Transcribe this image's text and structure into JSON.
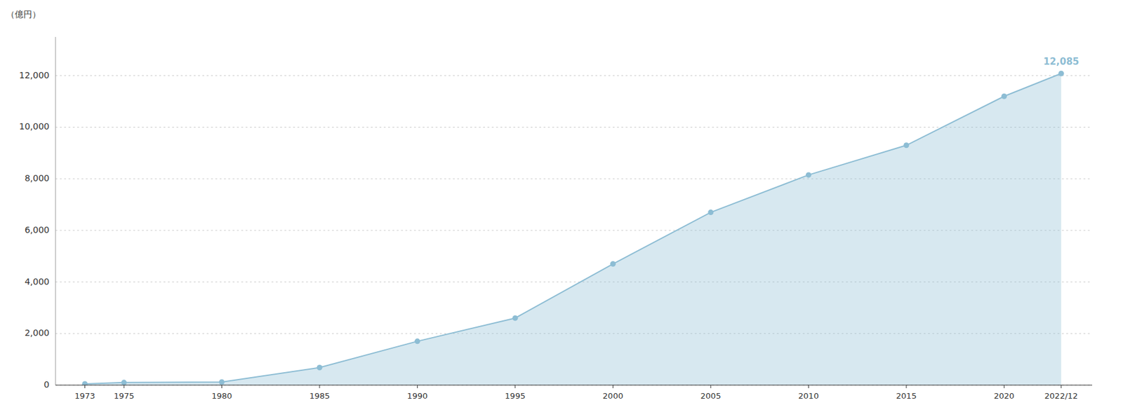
{
  "chart_data": {
    "type": "area",
    "x": [
      1973,
      1975,
      1980,
      1985,
      1990,
      1995,
      2000,
      2005,
      2010,
      2015,
      2020,
      2022.917
    ],
    "values": [
      50,
      100,
      120,
      680,
      1700,
      2600,
      4700,
      6700,
      8150,
      9300,
      11200,
      12085
    ],
    "xlim": [
      1971.5,
      2024.5
    ],
    "xticks": [
      1973,
      1975,
      1980,
      1985,
      1990,
      1995,
      2000,
      2005,
      2010,
      2015,
      2020,
      {
        "value": 2022.917,
        "label": "2022/12"
      }
    ],
    "ylim": [
      0,
      13500
    ],
    "yticks": [
      0,
      {
        "value": 2000,
        "label": "2,000"
      },
      {
        "value": 4000,
        "label": "4,000"
      },
      {
        "value": 6000,
        "label": "6,000"
      },
      {
        "value": 8000,
        "label": "8,000"
      },
      {
        "value": 10000,
        "label": "10,000"
      },
      {
        "value": 12000,
        "label": "12,000"
      }
    ],
    "ylabel": "（億円）",
    "annotation": "12,085",
    "color": "#8dbdd4",
    "marker": "circle",
    "grid": true
  }
}
